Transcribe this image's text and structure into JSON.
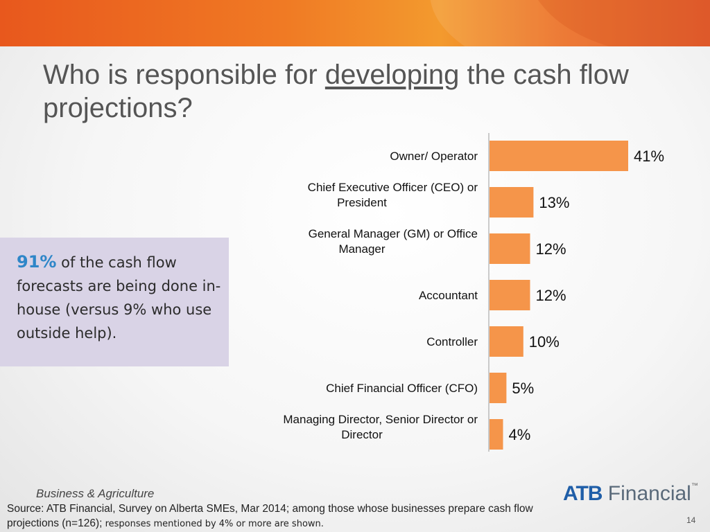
{
  "slide": {
    "title_before": "Who is responsible for ",
    "title_emph": "developing",
    "title_after": " the cash flow projections?",
    "page_number": "14"
  },
  "callout": {
    "highlight": "91%",
    "text": " of the cash flow forecasts are being done in-house (versus 9% who use outside help)."
  },
  "footer": {
    "sector": "Business & Agriculture",
    "source_main": "Source:  ATB Financial, Survey on Alberta SMEs, Mar 2014; among those whose businesses prepare cash flow projections (n=126);",
    "source_small": " responses mentioned by 4% or more are shown."
  },
  "logo": {
    "brand": "ATB",
    "suffix": " Financial",
    "tm": "™"
  },
  "colors": {
    "bar": "#f5954a",
    "accent": "#2e86c8",
    "banner": "#f07a24"
  },
  "chart_data": {
    "type": "bar",
    "orientation": "horizontal",
    "categories": [
      "Owner/ Operator",
      "Chief Executive Officer (CEO) or President",
      "General Manager (GM) or Office Manager",
      "Accountant",
      "Controller",
      "Chief Financial Officer (CFO)",
      "Managing Director, Senior Director or Director"
    ],
    "category_lines": [
      [
        "Owner/ Operator"
      ],
      [
        "Chief Executive Officer (CEO) or",
        "President"
      ],
      [
        "General Manager (GM) or Office",
        "Manager"
      ],
      [
        "Accountant"
      ],
      [
        "Controller"
      ],
      [
        "Chief Financial Officer (CFO)"
      ],
      [
        "Managing Director, Senior Director or",
        "Director"
      ]
    ],
    "values": [
      41,
      13,
      12,
      12,
      10,
      5,
      4
    ],
    "value_labels": [
      "41%",
      "13%",
      "12%",
      "12%",
      "10%",
      "5%",
      "4%"
    ],
    "unit": "%",
    "xlim": [
      0,
      100
    ],
    "grid": false,
    "legend": "none"
  }
}
